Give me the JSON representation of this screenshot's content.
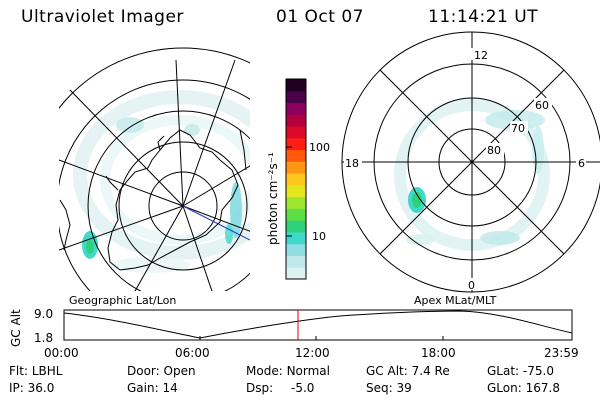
{
  "header": {
    "instrument": "Ultraviolet Imager",
    "date": "01 Oct 07",
    "time": "11:14:21 UT"
  },
  "colorbar": {
    "unit_label": "photon cm⁻²s⁻¹",
    "ticks": [
      "100",
      "10"
    ],
    "colors": [
      "#dff2f2",
      "#bfeaec",
      "#8fdde2",
      "#40d8c8",
      "#2fd07a",
      "#5ce046",
      "#9ee632",
      "#e4e61e",
      "#ffc71e",
      "#ff9614",
      "#ff5a0e",
      "#ff1e14",
      "#dc0a2a",
      "#b4003c",
      "#8c0060",
      "#4a0048",
      "#200020"
    ]
  },
  "geo_panel": {
    "label": "Geographic Lat/Lon"
  },
  "polar_panel": {
    "label": "Apex MLat/MLT",
    "mlt_labels": {
      "top": "12",
      "right": "6",
      "bottom": "0",
      "left": "18"
    },
    "lat_labels": [
      "60",
      "70",
      "80"
    ]
  },
  "altitude_plot": {
    "ylabel": "GC Alt",
    "y_ticks": [
      "9.0",
      "1.8"
    ],
    "x_ticks": [
      "00:00",
      "06:00",
      "12:00",
      "18:00",
      "23:59"
    ],
    "current_time_color": "#e00000"
  },
  "info": {
    "flt": {
      "label": "Flt:",
      "value": "LBHL"
    },
    "ip": {
      "label": "IP:",
      "value": "36.0"
    },
    "door": {
      "label": "Door:",
      "value": "Open"
    },
    "gain": {
      "label": "Gain:",
      "value": "14"
    },
    "mode": {
      "label": "Mode:",
      "value": "Normal"
    },
    "dsp": {
      "label": "Dsp:",
      "value": "-5.0"
    },
    "gc_alt": {
      "label": "GC Alt:",
      "value": "7.4 Re"
    },
    "seq": {
      "label": "Seq:",
      "value": "39"
    },
    "glat": {
      "label": "GLat:",
      "value": "-75.0"
    },
    "glon": {
      "label": "GLon:",
      "value": "167.8"
    }
  }
}
